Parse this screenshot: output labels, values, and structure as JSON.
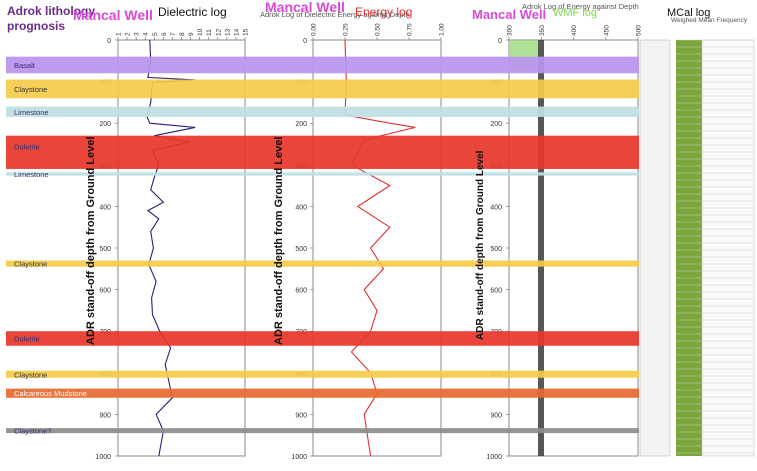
{
  "header": {
    "litho_title_1": "Adrok lithology",
    "litho_title_2": "prognosis",
    "well_name_1": "Mancal Well",
    "well_name_2": "Mancal Well",
    "well_name_3": "Mancal Well",
    "panel1_title": "Dielectric log",
    "panel2_super": "Adrok Log of Dielectric Energy against Depth",
    "panel2_title": "Energy log",
    "panel3_super": "Adrok Log of Energy against Depth",
    "panel3_title": "WMF log",
    "panel4_title": "MCal log",
    "panel4_sub": "Weighed Mean Frequency"
  },
  "chart_data": [
    {
      "type": "line",
      "title": "Dielectric log",
      "ylabel": "ADR stand-off depth from Ground Level",
      "xlim": [
        1,
        15
      ],
      "x_ticks": [
        "1",
        "2",
        "3",
        "4",
        "5",
        "6",
        "7",
        "8",
        "9",
        "10",
        "11",
        "12",
        "13",
        "14",
        "15"
      ],
      "ylim": [
        0,
        1000
      ],
      "y_ticks": [
        "0",
        "100",
        "200",
        "300",
        "400",
        "500",
        "600",
        "700",
        "800",
        "900",
        "1000"
      ],
      "series": [
        {
          "color": "#23237a",
          "points": [
            [
              4.5,
              0
            ],
            [
              4.6,
              50
            ],
            [
              4.3,
              90
            ],
            [
              9.5,
              96
            ],
            [
              4.8,
              102
            ],
            [
              4.6,
              150
            ],
            [
              4.2,
              185
            ],
            [
              4.5,
              200
            ],
            [
              9.5,
              210
            ],
            [
              5,
              230
            ],
            [
              9,
              245
            ],
            [
              4.8,
              265
            ],
            [
              5.5,
              300
            ],
            [
              5,
              330
            ],
            [
              4.6,
              360
            ],
            [
              6,
              390
            ],
            [
              4.3,
              410
            ],
            [
              5.5,
              430
            ],
            [
              4.6,
              460
            ],
            [
              4.9,
              500
            ],
            [
              4.4,
              540
            ],
            [
              5.2,
              580
            ],
            [
              4.7,
              620
            ],
            [
              4.8,
              660
            ],
            [
              5.6,
              700
            ],
            [
              6.8,
              740
            ],
            [
              6.2,
              780
            ],
            [
              6.6,
              820
            ],
            [
              7,
              860
            ],
            [
              5.2,
              900
            ],
            [
              6,
              940
            ],
            [
              5.5,
              1000
            ]
          ]
        }
      ]
    },
    {
      "type": "line",
      "title": "Energy log",
      "ylabel": "ADR stand-off depth from Ground Level",
      "xlim": [
        0,
        1
      ],
      "x_ticks": [
        "0.00",
        "0.25",
        "0.50",
        "0.75",
        "1.00"
      ],
      "ylim": [
        0,
        1000
      ],
      "y_ticks": [
        "0",
        "100",
        "200",
        "300",
        "400",
        "500",
        "600",
        "700",
        "800",
        "900",
        "1000"
      ],
      "series": [
        {
          "color": "#e03030",
          "points": [
            [
              0.25,
              0
            ],
            [
              0.26,
              100
            ],
            [
              0.25,
              180
            ],
            [
              0.6,
              200
            ],
            [
              0.8,
              210
            ],
            [
              0.4,
              240
            ],
            [
              0.3,
              300
            ],
            [
              0.6,
              350
            ],
            [
              0.35,
              400
            ],
            [
              0.6,
              450
            ],
            [
              0.45,
              500
            ],
            [
              0.55,
              550
            ],
            [
              0.4,
              600
            ],
            [
              0.5,
              650
            ],
            [
              0.45,
              700
            ],
            [
              0.3,
              750
            ],
            [
              0.45,
              800
            ],
            [
              0.5,
              850
            ],
            [
              0.4,
              900
            ],
            [
              0.45,
              1000
            ]
          ]
        }
      ]
    },
    {
      "type": "line",
      "title": "WMF log",
      "ylabel": "ADR stand-off depth from Ground Level",
      "xlim": [
        300,
        500
      ],
      "x_ticks": [
        "300",
        "350",
        "400",
        "450",
        "500"
      ],
      "ylim": [
        0,
        1000
      ],
      "y_ticks": [
        "0",
        "100",
        "200",
        "300",
        "400",
        "500",
        "600",
        "700",
        "800",
        "900",
        "1000"
      ]
    }
  ],
  "lithology": [
    {
      "label": "Basalt",
      "color": "#b994ee",
      "text_color": "#3a2a7a",
      "top": 40,
      "bottom": 80
    },
    {
      "label": "Claystone",
      "color": "#f4cb48",
      "text_color": "#333333",
      "top": 95,
      "bottom": 140
    },
    {
      "label": "Limestone",
      "color": "#bfe0e4",
      "text_color": "#333366",
      "top": 160,
      "bottom": 185
    },
    {
      "label": "Dolerite",
      "color": "#e8352a",
      "text_color": "#30307a",
      "top": 230,
      "bottom": 310
    },
    {
      "label": "Limestone",
      "color": "#bfe0e4",
      "text_color": "#333366",
      "top": 318,
      "bottom": 326
    },
    {
      "label": "Claystone",
      "color": "#f4cb48",
      "text_color": "#333333",
      "top": 530,
      "bottom": 545
    },
    {
      "label": "Dolerite",
      "color": "#e8352a",
      "text_color": "#30307a",
      "top": 700,
      "bottom": 735
    },
    {
      "label": "Claystone",
      "color": "#f4cb48",
      "text_color": "#333333",
      "top": 795,
      "bottom": 812
    },
    {
      "label": "Calcareous Mudstone",
      "color": "#e8682d",
      "text_color": "#ffffff",
      "top": 838,
      "bottom": 860
    },
    {
      "label": "Claystone?",
      "color": "#8c8c8c",
      "text_color": "#333366",
      "top": 933,
      "bottom": 945
    }
  ]
}
